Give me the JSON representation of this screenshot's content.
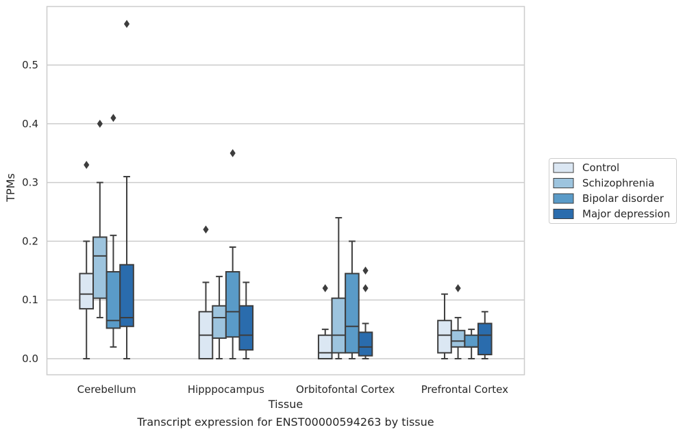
{
  "chart_data": {
    "type": "box",
    "xlabel": "Tissue",
    "ylabel": "TPMs",
    "caption": "Transcript expression for ENST00000594263 by tissue",
    "ylim": [
      -0.028,
      0.6
    ],
    "yticks": [
      "0.0",
      "0.1",
      "0.2",
      "0.3",
      "0.4",
      "0.5"
    ],
    "grid": "horizontal",
    "legend_position": "right",
    "categories": [
      "Cerebellum",
      "Hipppocampus",
      "Orbitofontal Cortex",
      "Prefrontal Cortex"
    ],
    "series": [
      {
        "name": "Control",
        "color": "#dbe7f3",
        "boxes": [
          {
            "whislo": 0.0,
            "q1": 0.085,
            "med": 0.11,
            "q3": 0.145,
            "whishi": 0.2,
            "fliers": [
              0.33
            ]
          },
          {
            "whislo": 0.0,
            "q1": 0.0,
            "med": 0.04,
            "q3": 0.08,
            "whishi": 0.13,
            "fliers": [
              0.22
            ]
          },
          {
            "whislo": 0.0,
            "q1": 0.0,
            "med": 0.01,
            "q3": 0.04,
            "whishi": 0.05,
            "fliers": [
              0.12
            ]
          },
          {
            "whislo": 0.0,
            "q1": 0.01,
            "med": 0.04,
            "q3": 0.065,
            "whishi": 0.11,
            "fliers": []
          }
        ]
      },
      {
        "name": "Schizophrenia",
        "color": "#9dc4de",
        "boxes": [
          {
            "whislo": 0.07,
            "q1": 0.103,
            "med": 0.175,
            "q3": 0.207,
            "whishi": 0.3,
            "fliers": [
              0.4
            ]
          },
          {
            "whislo": 0.0,
            "q1": 0.035,
            "med": 0.07,
            "q3": 0.09,
            "whishi": 0.14,
            "fliers": []
          },
          {
            "whislo": 0.0,
            "q1": 0.01,
            "med": 0.04,
            "q3": 0.103,
            "whishi": 0.24,
            "fliers": []
          },
          {
            "whislo": 0.0,
            "q1": 0.02,
            "med": 0.03,
            "q3": 0.048,
            "whishi": 0.07,
            "fliers": [
              0.12
            ]
          }
        ]
      },
      {
        "name": "Bipolar disorder",
        "color": "#5a9bc8",
        "boxes": [
          {
            "whislo": 0.02,
            "q1": 0.052,
            "med": 0.065,
            "q3": 0.148,
            "whishi": 0.21,
            "fliers": [
              0.41
            ]
          },
          {
            "whislo": 0.0,
            "q1": 0.037,
            "med": 0.08,
            "q3": 0.148,
            "whishi": 0.19,
            "fliers": [
              0.35
            ]
          },
          {
            "whislo": 0.0,
            "q1": 0.01,
            "med": 0.055,
            "q3": 0.145,
            "whishi": 0.2,
            "fliers": []
          },
          {
            "whislo": 0.0,
            "q1": 0.02,
            "med": 0.02,
            "q3": 0.04,
            "whishi": 0.05,
            "fliers": []
          }
        ]
      },
      {
        "name": "Major depression",
        "color": "#2a6cad",
        "boxes": [
          {
            "whislo": 0.0,
            "q1": 0.055,
            "med": 0.07,
            "q3": 0.16,
            "whishi": 0.31,
            "fliers": [
              0.57
            ]
          },
          {
            "whislo": 0.0,
            "q1": 0.015,
            "med": 0.04,
            "q3": 0.09,
            "whishi": 0.13,
            "fliers": []
          },
          {
            "whislo": 0.0,
            "q1": 0.005,
            "med": 0.02,
            "q3": 0.045,
            "whishi": 0.06,
            "fliers": [
              0.12,
              0.15
            ]
          },
          {
            "whislo": 0.0,
            "q1": 0.007,
            "med": 0.04,
            "q3": 0.06,
            "whishi": 0.08,
            "fliers": []
          }
        ]
      }
    ]
  }
}
